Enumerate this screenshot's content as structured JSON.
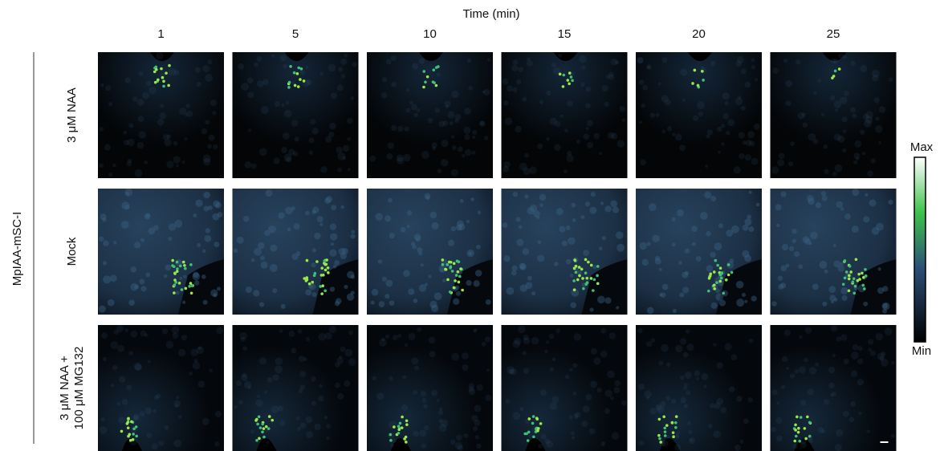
{
  "header": {
    "title": "Time (min)",
    "times": [
      "1",
      "5",
      "10",
      "15",
      "20",
      "25"
    ]
  },
  "group_label": "MpIAA-mSC-I",
  "rows": [
    {
      "lines": [
        "3 μM NAA"
      ]
    },
    {
      "lines": [
        "Mock"
      ]
    },
    {
      "lines": [
        "3 μM NAA +",
        "100 μM MG132"
      ]
    }
  ],
  "colorbar": {
    "max": "Max",
    "min": "Min"
  }
}
